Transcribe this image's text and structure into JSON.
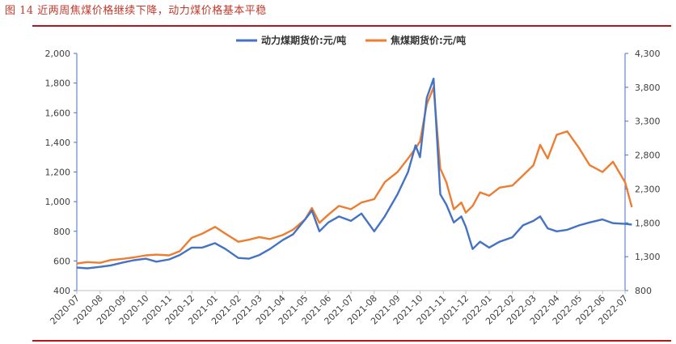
{
  "figure_title": "图 14    近两周焦煤价格继续下降，动力煤价格基本平稳",
  "colors": {
    "thermal": "#4472C4",
    "coking": "#ED7D31",
    "rule": "#B8141C",
    "left_axis": "#4472C4",
    "right_axis": "#4472C4"
  },
  "chart_data": {
    "type": "line",
    "title": "",
    "xlabel": "",
    "ylabel": "",
    "legend_position": "top",
    "categories": [
      "2020-07",
      "2020-08",
      "2020-09",
      "2020-10",
      "2020-11",
      "2020-12",
      "2021-01",
      "2021-02",
      "2021-03",
      "2021-04",
      "2021-05",
      "2021-06",
      "2021-07",
      "2021-08",
      "2021-09",
      "2021-10",
      "2021-11",
      "2021-12",
      "2022-01",
      "2022-02",
      "2022-03",
      "2022-04",
      "2022-05",
      "2022-06",
      "2022-07"
    ],
    "left_axis": {
      "range": [
        400,
        2000
      ],
      "ticks": [
        "400",
        "600",
        "800",
        "1,000",
        "1,200",
        "1,400",
        "1,600",
        "1,800",
        "2,000"
      ]
    },
    "right_axis": {
      "range": [
        800,
        4300
      ],
      "ticks": [
        "800",
        "1,300",
        "1,800",
        "2,300",
        "2,800",
        "3,300",
        "3,800",
        "4,300"
      ]
    },
    "series": [
      {
        "name": "动力煤期货价:元/吨",
        "axis": "left",
        "points": [
          [
            "2020-07-01",
            555
          ],
          [
            "2020-07-15",
            550
          ],
          [
            "2020-08-01",
            560
          ],
          [
            "2020-08-15",
            570
          ],
          [
            "2020-09-01",
            590
          ],
          [
            "2020-09-15",
            605
          ],
          [
            "2020-10-01",
            615
          ],
          [
            "2020-10-15",
            595
          ],
          [
            "2020-11-01",
            610
          ],
          [
            "2020-11-15",
            640
          ],
          [
            "2020-12-01",
            690
          ],
          [
            "2020-12-15",
            690
          ],
          [
            "2021-01-01",
            720
          ],
          [
            "2021-01-15",
            680
          ],
          [
            "2021-02-01",
            620
          ],
          [
            "2021-02-15",
            615
          ],
          [
            "2021-03-01",
            640
          ],
          [
            "2021-03-15",
            680
          ],
          [
            "2021-04-01",
            740
          ],
          [
            "2021-04-15",
            780
          ],
          [
            "2021-05-01",
            880
          ],
          [
            "2021-05-10",
            940
          ],
          [
            "2021-05-20",
            800
          ],
          [
            "2021-06-01",
            860
          ],
          [
            "2021-06-15",
            900
          ],
          [
            "2021-07-01",
            870
          ],
          [
            "2021-07-15",
            920
          ],
          [
            "2021-08-01",
            800
          ],
          [
            "2021-08-15",
            900
          ],
          [
            "2021-09-01",
            1050
          ],
          [
            "2021-09-15",
            1200
          ],
          [
            "2021-09-25",
            1380
          ],
          [
            "2021-10-01",
            1300
          ],
          [
            "2021-10-10",
            1700
          ],
          [
            "2021-10-19",
            1830
          ],
          [
            "2021-10-28",
            1050
          ],
          [
            "2021-11-05",
            980
          ],
          [
            "2021-11-15",
            860
          ],
          [
            "2021-11-25",
            900
          ],
          [
            "2021-12-01",
            830
          ],
          [
            "2021-12-10",
            680
          ],
          [
            "2021-12-20",
            730
          ],
          [
            "2022-01-01",
            690
          ],
          [
            "2022-01-15",
            730
          ],
          [
            "2022-02-01",
            760
          ],
          [
            "2022-02-15",
            840
          ],
          [
            "2022-03-01",
            870
          ],
          [
            "2022-03-10",
            900
          ],
          [
            "2022-03-20",
            820
          ],
          [
            "2022-04-01",
            800
          ],
          [
            "2022-04-15",
            810
          ],
          [
            "2022-05-01",
            840
          ],
          [
            "2022-05-15",
            860
          ],
          [
            "2022-06-01",
            880
          ],
          [
            "2022-06-15",
            855
          ],
          [
            "2022-07-01",
            850
          ],
          [
            "2022-07-10",
            845
          ]
        ]
      },
      {
        "name": "焦煤期货价:元/吨",
        "axis": "right",
        "points": [
          [
            "2020-07-01",
            1200
          ],
          [
            "2020-07-15",
            1220
          ],
          [
            "2020-08-01",
            1210
          ],
          [
            "2020-08-15",
            1250
          ],
          [
            "2020-09-01",
            1270
          ],
          [
            "2020-09-15",
            1290
          ],
          [
            "2020-10-01",
            1320
          ],
          [
            "2020-10-15",
            1330
          ],
          [
            "2020-11-01",
            1320
          ],
          [
            "2020-11-15",
            1380
          ],
          [
            "2020-12-01",
            1580
          ],
          [
            "2020-12-15",
            1640
          ],
          [
            "2021-01-01",
            1740
          ],
          [
            "2021-01-15",
            1640
          ],
          [
            "2021-02-01",
            1520
          ],
          [
            "2021-02-15",
            1550
          ],
          [
            "2021-03-01",
            1590
          ],
          [
            "2021-03-15",
            1560
          ],
          [
            "2021-04-01",
            1620
          ],
          [
            "2021-04-15",
            1700
          ],
          [
            "2021-05-01",
            1850
          ],
          [
            "2021-05-10",
            2020
          ],
          [
            "2021-05-20",
            1800
          ],
          [
            "2021-06-01",
            1920
          ],
          [
            "2021-06-15",
            2050
          ],
          [
            "2021-07-01",
            2000
          ],
          [
            "2021-07-15",
            2100
          ],
          [
            "2021-08-01",
            2150
          ],
          [
            "2021-08-15",
            2400
          ],
          [
            "2021-09-01",
            2550
          ],
          [
            "2021-09-15",
            2750
          ],
          [
            "2021-09-25",
            2900
          ],
          [
            "2021-10-01",
            3000
          ],
          [
            "2021-10-10",
            3550
          ],
          [
            "2021-10-19",
            3800
          ],
          [
            "2021-10-28",
            2600
          ],
          [
            "2021-11-05",
            2400
          ],
          [
            "2021-11-15",
            2000
          ],
          [
            "2021-11-25",
            2100
          ],
          [
            "2021-12-01",
            1950
          ],
          [
            "2021-12-10",
            2050
          ],
          [
            "2021-12-20",
            2250
          ],
          [
            "2022-01-01",
            2200
          ],
          [
            "2022-01-15",
            2320
          ],
          [
            "2022-02-01",
            2350
          ],
          [
            "2022-02-15",
            2500
          ],
          [
            "2022-03-01",
            2650
          ],
          [
            "2022-03-10",
            2950
          ],
          [
            "2022-03-20",
            2750
          ],
          [
            "2022-04-01",
            3100
          ],
          [
            "2022-04-15",
            3150
          ],
          [
            "2022-05-01",
            2900
          ],
          [
            "2022-05-15",
            2650
          ],
          [
            "2022-06-01",
            2550
          ],
          [
            "2022-06-15",
            2700
          ],
          [
            "2022-07-01",
            2400
          ],
          [
            "2022-07-10",
            2030
          ]
        ]
      }
    ]
  }
}
